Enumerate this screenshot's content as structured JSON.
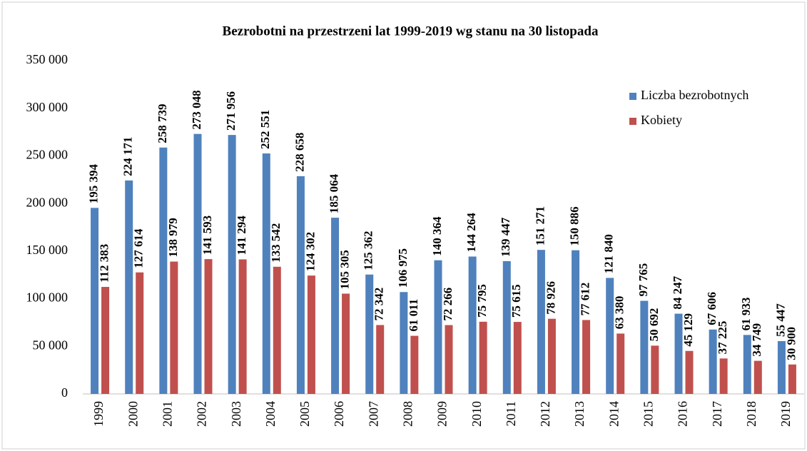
{
  "chart_data": {
    "type": "bar",
    "title": "Bezrobotni na przestrzeni lat 1999-2019 wg stanu na 30 listopada",
    "categories": [
      "1999",
      "2000",
      "2001",
      "2002",
      "2003",
      "2004",
      "2005",
      "2006",
      "2007",
      "2008",
      "2009",
      "2010",
      "2011",
      "2012",
      "2013",
      "2014",
      "2015",
      "2016",
      "2017",
      "2018",
      "2019"
    ],
    "series": [
      {
        "name": "Liczba bezrobotnych",
        "color": "#4f81bd",
        "values": [
          195394,
          224171,
          258739,
          273048,
          271956,
          252551,
          228658,
          185064,
          125362,
          106975,
          140364,
          144264,
          139447,
          151271,
          150886,
          121840,
          97765,
          84247,
          67606,
          61933,
          55447
        ],
        "value_labels": [
          "195 394",
          "224 171",
          "258 739",
          "273 048",
          "271 956",
          "252 551",
          "228 658",
          "185 064",
          "125 362",
          "106 975",
          "140 364",
          "144 264",
          "139 447",
          "151 271",
          "150 886",
          "121 840",
          "97 765",
          "84 247",
          "67 606",
          "61 933",
          "55 447"
        ]
      },
      {
        "name": "Kobiety",
        "color": "#c0504d",
        "values": [
          112383,
          127614,
          138979,
          141593,
          141294,
          133542,
          124302,
          105305,
          72342,
          61011,
          72266,
          75795,
          75615,
          78926,
          77612,
          63380,
          50692,
          45129,
          37225,
          34749,
          30900
        ],
        "value_labels": [
          "112 383",
          "127 614",
          "138 979",
          "141 593",
          "141 294",
          "133 542",
          "124 302",
          "105 305",
          "72 342",
          "61 011",
          "72 266",
          "75 795",
          "75 615",
          "78 926",
          "77 612",
          "63 380",
          "50 692",
          "45 129",
          "37 225",
          "34 749",
          "30 900"
        ]
      }
    ],
    "ylim": [
      0,
      350000
    ],
    "yticks": [
      0,
      {
        "value": 50000,
        "label": "50 000"
      },
      {
        "value": 100000,
        "label": "100 000"
      },
      {
        "value": 150000,
        "label": "150 000"
      },
      {
        "value": 200000,
        "label": "200 000"
      },
      {
        "value": 250000,
        "label": "250 000"
      },
      {
        "value": 300000,
        "label": "300 000"
      },
      {
        "value": 350000,
        "label": "350 000"
      }
    ],
    "legend": "upper right",
    "grid": false
  }
}
